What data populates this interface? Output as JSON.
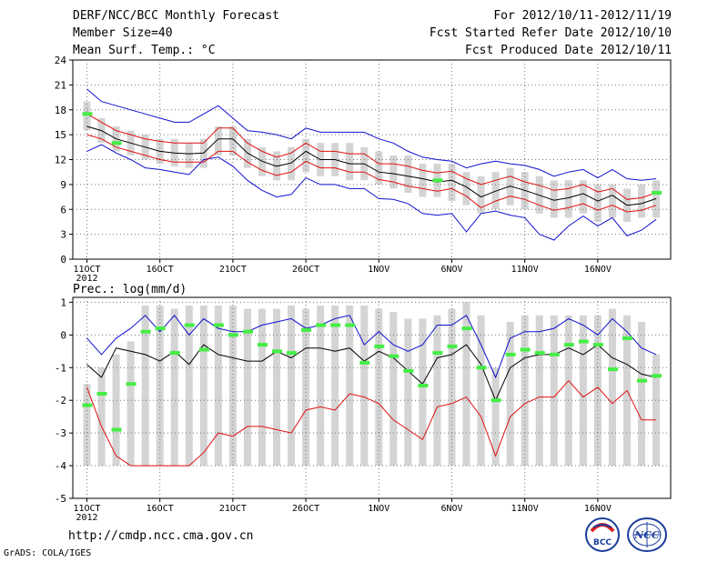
{
  "header": {
    "title": "DERF/NCC/BCC Monthly Forecast",
    "member_size": "Member Size=40",
    "variable": "Mean Surf. Temp.: °C",
    "period": "For 2012/10/11-2012/11/19",
    "fcst_started": "Fcst Started Refer Date 2012/10/10",
    "fcst_produced": "Fcst Produced Date 2012/10/11"
  },
  "footer": {
    "url": "http://cmdp.ncc.cma.gov.cn",
    "grads": "GrADS: COLA/IGES",
    "logo_bcc": "BCC",
    "logo_ncc": "NCC"
  },
  "colors": {
    "box": "#d4d4d4",
    "median": "#000000",
    "inner": "#e01010",
    "outer": "#1010d0",
    "obs": "#44ee44",
    "grid": "#777777"
  },
  "chart_data": [
    {
      "type": "line",
      "title": "Mean Surf. Temp.: °C",
      "x_ticks": [
        "11OCT",
        "16OCT",
        "21OCT",
        "26OCT",
        "1NOV",
        "6NOV",
        "11NOV",
        "16NOV"
      ],
      "x_tick_days": [
        1,
        6,
        11,
        16,
        21,
        26,
        31,
        36
      ],
      "x_year_label": "2012",
      "ylim": [
        0,
        24
      ],
      "y_ticks": [
        0,
        3,
        6,
        9,
        12,
        15,
        18,
        21,
        24
      ],
      "y_tick_labels": [
        "0",
        "3",
        "6",
        "9",
        "12",
        "15",
        "18",
        "21",
        "24"
      ],
      "days": 40,
      "box_low": [
        15.5,
        14.0,
        13.0,
        12.5,
        12.0,
        11.5,
        11.2,
        11.0,
        11.0,
        12.5,
        12.5,
        11.0,
        10.0,
        9.5,
        9.5,
        10.5,
        10.0,
        10.0,
        9.5,
        9.5,
        9.0,
        8.5,
        8.0,
        7.5,
        7.5,
        7.0,
        6.5,
        5.5,
        6.0,
        6.5,
        6.0,
        5.5,
        5.0,
        5.0,
        5.5,
        4.5,
        5.0,
        4.5,
        5.0,
        5.0
      ],
      "box_high": [
        19.0,
        17.0,
        16.0,
        15.5,
        15.0,
        14.5,
        14.5,
        14.0,
        14.5,
        16.0,
        16.0,
        14.5,
        13.5,
        13.0,
        13.5,
        14.5,
        14.0,
        14.0,
        14.0,
        13.5,
        13.0,
        12.5,
        12.5,
        11.5,
        11.5,
        11.5,
        10.5,
        10.0,
        10.5,
        11.0,
        10.5,
        10.0,
        9.5,
        9.5,
        9.5,
        9.0,
        9.0,
        8.5,
        9.0,
        9.5
      ],
      "median": [
        16.0,
        15.5,
        14.5,
        14.0,
        13.5,
        13.0,
        12.8,
        12.7,
        12.8,
        14.5,
        14.5,
        12.8,
        11.8,
        11.2,
        11.6,
        13.0,
        12.0,
        12.0,
        11.5,
        11.5,
        10.5,
        10.3,
        10.0,
        9.7,
        9.3,
        9.5,
        8.7,
        7.5,
        8.2,
        8.8,
        8.3,
        7.7,
        7.1,
        7.4,
        7.9,
        7.0,
        7.7,
        6.5,
        6.7,
        7.3
      ],
      "inner_high": [
        17.5,
        16.5,
        15.5,
        15.0,
        14.5,
        14.2,
        14.0,
        14.0,
        14.0,
        15.8,
        15.8,
        14.0,
        13.0,
        12.3,
        12.8,
        14.0,
        13.0,
        13.0,
        12.7,
        12.7,
        11.5,
        11.5,
        11.2,
        10.7,
        10.4,
        10.6,
        9.7,
        9.0,
        9.5,
        10.0,
        9.3,
        8.9,
        8.3,
        8.5,
        9.0,
        8.1,
        8.5,
        7.2,
        7.4,
        8.0
      ],
      "inner_low": [
        15.0,
        14.5,
        13.5,
        13.0,
        12.5,
        12.0,
        11.7,
        11.7,
        11.7,
        13.0,
        13.0,
        11.7,
        10.7,
        10.1,
        10.5,
        11.8,
        11.0,
        11.0,
        10.5,
        10.5,
        9.6,
        9.3,
        8.8,
        8.5,
        8.2,
        8.5,
        7.6,
        6.2,
        7.0,
        7.6,
        7.2,
        6.5,
        5.9,
        6.2,
        6.7,
        5.9,
        6.5,
        5.7,
        5.9,
        6.5
      ],
      "outer_high": [
        20.5,
        19.0,
        18.5,
        18.0,
        17.5,
        17.0,
        16.5,
        16.5,
        17.5,
        18.5,
        17.0,
        15.5,
        15.3,
        15.0,
        14.5,
        15.8,
        15.3,
        15.3,
        15.3,
        15.3,
        14.5,
        14.0,
        13.0,
        12.3,
        12.0,
        11.8,
        11.0,
        11.5,
        11.8,
        11.5,
        11.3,
        10.8,
        10.0,
        10.5,
        10.8,
        9.8,
        10.8,
        9.7,
        9.5,
        9.7
      ],
      "outer_low": [
        13.0,
        13.8,
        12.8,
        12.0,
        11.0,
        10.8,
        10.5,
        10.2,
        12.0,
        12.3,
        11.2,
        9.5,
        8.3,
        7.5,
        7.8,
        9.8,
        9.0,
        9.0,
        8.5,
        8.5,
        7.3,
        7.2,
        6.7,
        5.5,
        5.3,
        5.5,
        3.3,
        5.5,
        5.8,
        5.3,
        5.0,
        3.0,
        2.3,
        4.0,
        5.2,
        4.0,
        5.0,
        2.8,
        3.5,
        4.8
      ],
      "obs": [
        17.5,
        null,
        14.0,
        null,
        null,
        null,
        null,
        null,
        null,
        null,
        null,
        null,
        null,
        null,
        null,
        null,
        null,
        null,
        null,
        null,
        null,
        null,
        null,
        null,
        9.5,
        null,
        null,
        null,
        null,
        null,
        null,
        null,
        null,
        null,
        null,
        null,
        null,
        null,
        null,
        8.0
      ]
    },
    {
      "type": "line",
      "title": "Prec.: log(mm/d)",
      "x_ticks": [
        "11OCT",
        "16OCT",
        "21OCT",
        "26OCT",
        "1NOV",
        "6NOV",
        "11NOV",
        "16NOV"
      ],
      "x_tick_days": [
        1,
        6,
        11,
        16,
        21,
        26,
        31,
        36
      ],
      "x_year_label": "2012",
      "ylim": [
        -5,
        1.15
      ],
      "y_ticks": [
        -5,
        -4,
        -3,
        -2,
        -1,
        0,
        1
      ],
      "y_tick_labels": [
        "-5",
        "-4",
        "-3",
        "-2",
        "-1",
        "0",
        "1"
      ],
      "days": 40,
      "box_low": [
        -4,
        -4,
        -4,
        -4,
        -4,
        -4,
        -4,
        -4,
        -4,
        -4,
        -4,
        -4,
        -4,
        -4,
        -4,
        -4,
        -4,
        -4,
        -4,
        -4,
        -4,
        -4,
        -4,
        -4,
        -4,
        -4,
        -4,
        -4,
        -4,
        -4,
        -4,
        -4,
        -4,
        -4,
        -4,
        -4,
        -4,
        -4,
        -4,
        -4
      ],
      "box_high": [
        -1.5,
        -1.0,
        -0.6,
        -0.2,
        0.9,
        0.9,
        0.8,
        0.9,
        0.9,
        0.9,
        0.9,
        0.8,
        0.8,
        0.8,
        0.9,
        0.8,
        0.9,
        0.9,
        0.9,
        0.9,
        0.8,
        0.7,
        0.5,
        0.5,
        0.6,
        0.8,
        1.0,
        0.6,
        -1.0,
        0.4,
        0.6,
        0.6,
        0.6,
        0.6,
        0.6,
        0.6,
        0.8,
        0.6,
        0.4,
        -0.6
      ],
      "median": [
        -0.9,
        -1.3,
        -0.4,
        -0.5,
        -0.6,
        -0.8,
        -0.5,
        -0.9,
        -0.3,
        -0.6,
        -0.7,
        -0.8,
        -0.8,
        -0.5,
        -0.7,
        -0.4,
        -0.4,
        -0.5,
        -0.4,
        -0.8,
        -0.5,
        -0.7,
        -1.1,
        -1.5,
        -0.7,
        -0.6,
        -0.3,
        -0.9,
        -2.0,
        -1.0,
        -0.7,
        -0.6,
        -0.6,
        -0.4,
        -0.6,
        -0.3,
        -0.7,
        -0.9,
        -1.2,
        -1.3
      ],
      "inner_low": [
        -1.6,
        -2.8,
        -3.7,
        -4.0,
        -4.0,
        -4.0,
        -4.0,
        -4.0,
        -3.6,
        -3.0,
        -3.1,
        -2.8,
        -2.8,
        -2.9,
        -3.0,
        -2.3,
        -2.2,
        -2.3,
        -1.8,
        -1.9,
        -2.1,
        -2.6,
        -2.9,
        -3.2,
        -2.2,
        -2.1,
        -1.9,
        -2.5,
        -3.7,
        -2.5,
        -2.1,
        -1.9,
        -1.9,
        -1.4,
        -1.9,
        -1.6,
        -2.1,
        -1.7,
        -2.6,
        -2.6
      ],
      "outer_high": [
        -0.1,
        -0.6,
        -0.1,
        0.2,
        0.6,
        0.1,
        0.6,
        0.0,
        0.5,
        0.2,
        0.1,
        0.1,
        0.3,
        0.4,
        0.5,
        0.2,
        0.3,
        0.5,
        0.6,
        -0.3,
        0.1,
        -0.3,
        -0.5,
        -0.3,
        0.3,
        0.3,
        0.6,
        -0.3,
        -1.3,
        -0.1,
        0.1,
        0.1,
        0.2,
        0.5,
        0.3,
        0.0,
        0.5,
        0.1,
        -0.4,
        -0.6
      ],
      "obs": [
        -2.15,
        -1.8,
        -2.9,
        -1.5,
        0.1,
        0.2,
        -0.55,
        0.3,
        -0.45,
        0.3,
        0.0,
        0.1,
        -0.3,
        -0.5,
        -0.55,
        0.15,
        0.3,
        0.3,
        0.3,
        -0.85,
        -0.35,
        -0.65,
        -1.1,
        -1.55,
        -0.55,
        -0.35,
        0.2,
        -1.0,
        -2.0,
        -0.6,
        -0.45,
        -0.55,
        -0.6,
        -0.3,
        -0.2,
        -0.3,
        -1.05,
        -0.1,
        -1.4,
        -1.25
      ]
    }
  ]
}
